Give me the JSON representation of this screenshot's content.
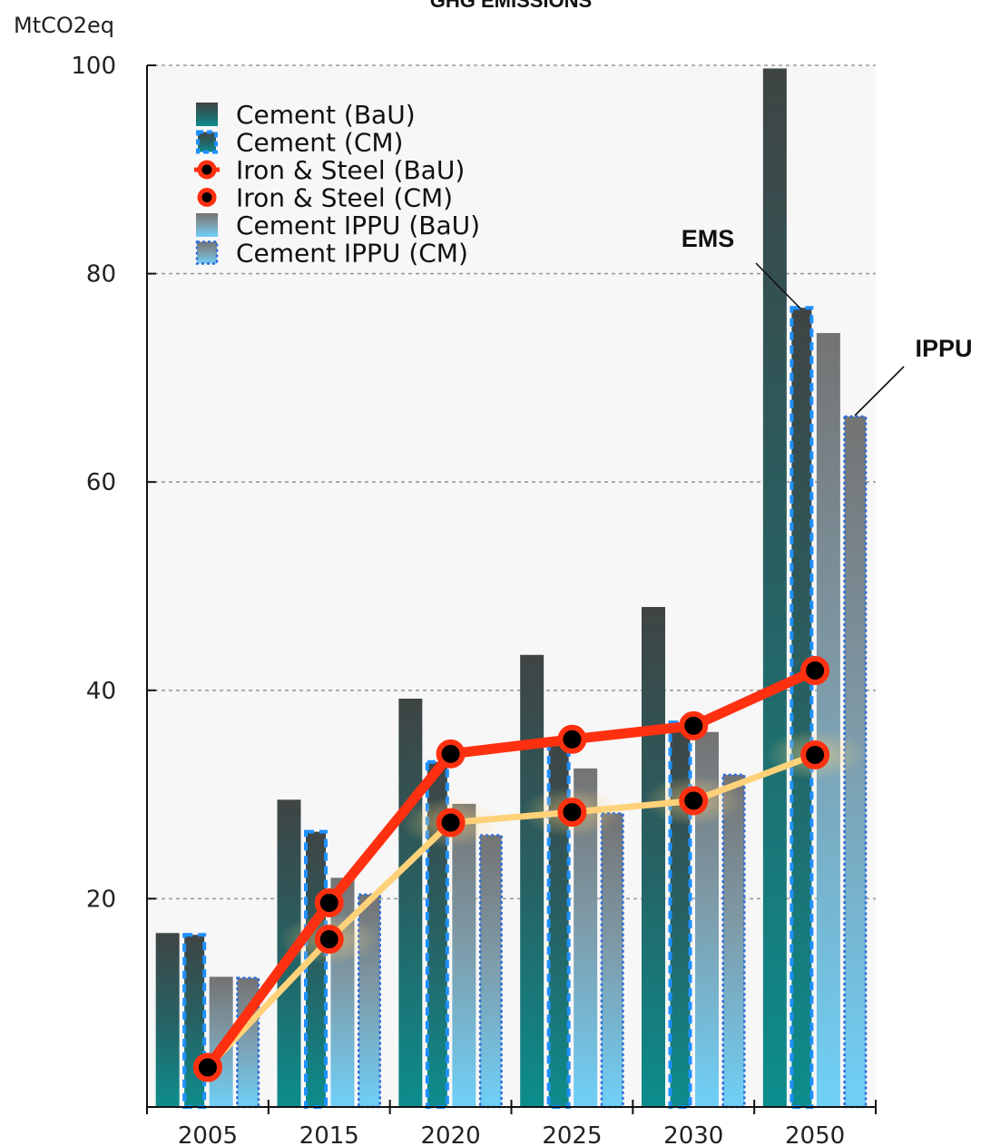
{
  "chart_data": {
    "type": "bar",
    "title": "GHG EMISSIONS",
    "ylabel": "MtCO2eq",
    "xlabel": "",
    "categories": [
      "2005",
      "2015",
      "2020",
      "2025",
      "2030",
      "2050"
    ],
    "ylim": [
      0,
      100
    ],
    "yticks": [
      "20",
      "40",
      "60",
      "80",
      "100"
    ],
    "grid": true,
    "legend_position": "top-left",
    "series": [
      {
        "name": "Cement (BaU)",
        "kind": "bar",
        "color": "#2e4a4a",
        "values": [
          16.7,
          29.5,
          39.2,
          43.4,
          48.0,
          99.7
        ]
      },
      {
        "name": "Cement (CM)",
        "kind": "bar",
        "color": "#1e90ff",
        "values": [
          16.7,
          26.6,
          33.3,
          35.3,
          37.1,
          76.9
        ]
      },
      {
        "name": "Iron & Steel (BaU)",
        "kind": "line",
        "color": "#ff3010",
        "values": [
          3.8,
          19.6,
          33.9,
          35.3,
          36.6,
          41.9
        ]
      },
      {
        "name": "Iron & Steel (CM)",
        "kind": "line",
        "color": "#ffd27a",
        "values": [
          3.8,
          16.1,
          27.3,
          28.3,
          29.4,
          33.8
        ]
      },
      {
        "name": "Cement IPPU (BaU)",
        "kind": "bar",
        "color": "#7fb4d0",
        "values": [
          12.5,
          22.0,
          29.1,
          32.5,
          36.0,
          74.3
        ]
      },
      {
        "name": "Cement IPPU (CM)",
        "kind": "bar",
        "color": "#2f6cd8",
        "values": [
          12.5,
          20.5,
          26.2,
          28.3,
          32.0,
          66.4
        ]
      }
    ],
    "annotations": [
      {
        "text": "EMS"
      },
      {
        "text": "IPPU"
      }
    ]
  }
}
